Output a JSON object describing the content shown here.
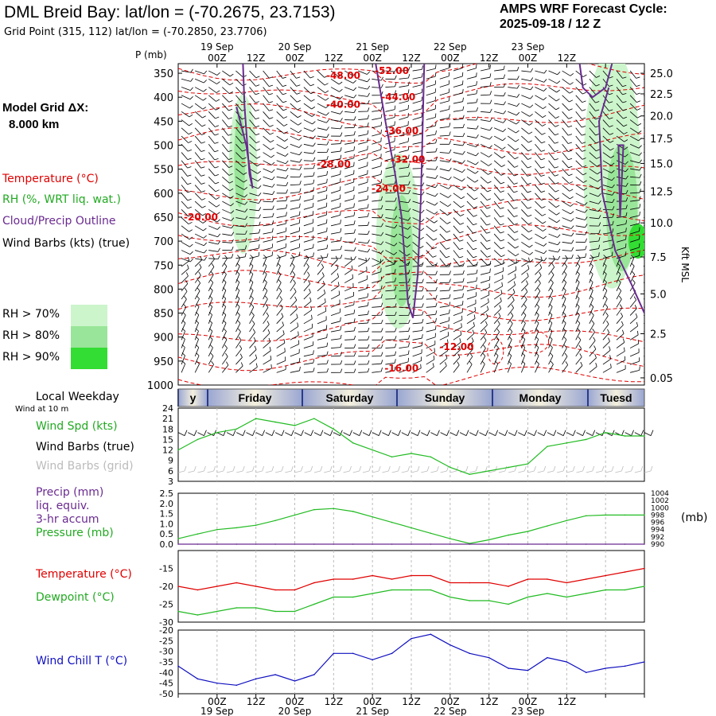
{
  "header": {
    "title": "DML Breid Bay:  lat/lon = (-70.2675, 23.7153)",
    "subtitle": "Grid Point (315, 112) lat/lon = (-70.2850, 23.7706)",
    "cycle_line1": "AMPS WRF Forecast Cycle:",
    "cycle_line2": "2025-09-18 / 12  Z"
  },
  "left_labels": {
    "p_mb": "P (mb)",
    "model_grid": "Model Grid ΔX:",
    "grid_km": "8.000 km",
    "temperature": "Temperature (°C)",
    "rh": "RH (%, WRT liq. wat.)",
    "cloud": "Cloud/Precip Outline",
    "wind_barbs": "Wind Barbs (kts) (true)",
    "rh70": "RH > 70%",
    "rh80": "RH > 80%",
    "rh90": "RH > 90%",
    "local_weekday": "Local Weekday",
    "wind_at": "Wind at 10 m",
    "wind_spd": "Wind Spd (kts)",
    "wind_barbs_true": "Wind Barbs (true)",
    "wind_barbs_grid": "Wind Barbs (grid)",
    "precip1": "Precip (mm)",
    "precip2": "liq. equiv.",
    "precip3": "3-hr accum",
    "pressure": "Pressure (mb)",
    "pressure_unit": "(mb)",
    "temperature2": "Temperature (°C)",
    "dewpoint": "Dewpoint (°C)",
    "windchill": "Wind Chill T (°C)",
    "kft": "Kft MSL"
  },
  "colors": {
    "temp": "#e00000",
    "rh_green": "#22bb22",
    "cloud": "#6a2a90",
    "rh70": "#ccf5cc",
    "rh80": "#99e599",
    "rh90": "#33dd33",
    "chill": "#1010c0",
    "band_dark": "#2a3a8a",
    "band_light": "#ece8d8"
  },
  "chart_data": [
    {
      "type": "heatmap",
      "title": "Time-height cross section",
      "xticks": [
        "00Z",
        "12Z",
        "00Z",
        "12Z",
        "00Z",
        "12Z",
        "00Z",
        "12Z",
        "00Z",
        "12Z"
      ],
      "top_dates": [
        "19 Sep",
        "20 Sep",
        "21 Sep",
        "22 Sep",
        "23 Sep"
      ],
      "pressure_ticks": [
        "350",
        "400",
        "450",
        "500",
        "550",
        "600",
        "650",
        "700",
        "750",
        "800",
        "850",
        "900",
        "950",
        "1000"
      ],
      "height_ticks": [
        "25.0",
        "22.5",
        "20.0",
        "17.5",
        "15.0",
        "12.5",
        "10.0",
        "7.5",
        "5.0",
        "2.5",
        "0.05"
      ],
      "temp_labels": [
        {
          "text": "-48.00",
          "hour": 51,
          "p": 355
        },
        {
          "text": "-52.00",
          "hour": 66,
          "p": 345
        },
        {
          "text": "-44.00",
          "hour": 68,
          "p": 400
        },
        {
          "text": "-40.00",
          "hour": 51,
          "p": 415
        },
        {
          "text": "-36.00",
          "hour": 69,
          "p": 470
        },
        {
          "text": "-32.00",
          "hour": 71,
          "p": 530
        },
        {
          "text": "-28.00",
          "hour": 48,
          "p": 540
        },
        {
          "text": "-24.00",
          "hour": 65,
          "p": 590
        },
        {
          "text": "-20.00",
          "hour": 7,
          "p": 650
        },
        {
          "text": "-12.00",
          "hour": 86,
          "p": 920
        },
        {
          "text": "-16.00",
          "hour": 69,
          "p": 965
        }
      ]
    },
    {
      "type": "line",
      "title": "Wind Spd (kts)",
      "x_hours": [
        0,
        6,
        12,
        18,
        24,
        30,
        36,
        42,
        48,
        54,
        60,
        66,
        72,
        78,
        84,
        90,
        96,
        102,
        108,
        114,
        120,
        126,
        132,
        138,
        144
      ],
      "series": [
        {
          "name": "Wind Spd (kts)",
          "values": [
            12,
            15,
            17,
            18,
            21,
            20,
            19,
            21,
            18,
            14,
            12,
            10,
            11,
            10,
            7,
            5,
            6,
            7,
            8,
            13,
            14,
            15,
            17,
            16,
            16
          ]
        }
      ],
      "ylim": [
        3,
        24
      ],
      "yticks": [
        "3",
        "6",
        "9",
        "12",
        "15",
        "18",
        "21",
        "24"
      ]
    },
    {
      "type": "line",
      "title": "Precip / Pressure",
      "x_hours": [
        0,
        6,
        12,
        18,
        24,
        30,
        36,
        42,
        48,
        54,
        60,
        66,
        72,
        78,
        84,
        90,
        96,
        102,
        108,
        114,
        120,
        126,
        132,
        138,
        144
      ],
      "series": [
        {
          "name": "Pressure (mb)",
          "values": [
            991.5,
            992.8,
            994.0,
            994.5,
            995.2,
            996.5,
            998.0,
            999.5,
            999.8,
            999.0,
            997.5,
            996.0,
            994.5,
            993.0,
            991.5,
            990.2,
            991.2,
            992.5,
            993.5,
            995.0,
            996.5,
            997.8,
            998.0,
            998.0,
            998.0
          ]
        },
        {
          "name": "Precip (mm)",
          "values": [
            0,
            0,
            0,
            0,
            0,
            0,
            0,
            0,
            0,
            0,
            0,
            0,
            0,
            0,
            0,
            0,
            0,
            0,
            0,
            0,
            0,
            0,
            0,
            0,
            0
          ]
        }
      ],
      "yticks_left": [
        "0.0",
        "0.5",
        "1.0",
        "1.5",
        "2.0",
        "2.5"
      ],
      "yticks_right": [
        "990",
        "992",
        "994",
        "996",
        "998",
        "1000",
        "1002",
        "1004"
      ]
    },
    {
      "type": "line",
      "title": "Temperature / Dewpoint",
      "x_hours": [
        0,
        6,
        12,
        18,
        24,
        30,
        36,
        42,
        48,
        54,
        60,
        66,
        72,
        78,
        84,
        90,
        96,
        102,
        108,
        114,
        120,
        126,
        132,
        138,
        144
      ],
      "series": [
        {
          "name": "Temperature (°C)",
          "values": [
            -20,
            -21,
            -20,
            -19,
            -20,
            -21,
            -21,
            -19,
            -18,
            -18,
            -17,
            -18,
            -17,
            -17,
            -19,
            -19,
            -19,
            -20,
            -18,
            -18,
            -19,
            -18,
            -17,
            -16,
            -15
          ]
        },
        {
          "name": "Dewpoint (°C)",
          "values": [
            -27,
            -28,
            -27,
            -26,
            -26,
            -27,
            -27,
            -25,
            -23,
            -23,
            -22,
            -21,
            -21,
            -21,
            -23,
            -24,
            -24,
            -25,
            -23,
            -22,
            -23,
            -22,
            -21,
            -21,
            -20
          ]
        }
      ],
      "ylim": [
        -30,
        -10
      ],
      "yticks": [
        "-30",
        "-25",
        "-20",
        "-15"
      ]
    },
    {
      "type": "line",
      "title": "Wind Chill T (°C)",
      "x_hours": [
        0,
        6,
        12,
        18,
        24,
        30,
        36,
        42,
        48,
        54,
        60,
        66,
        72,
        78,
        84,
        90,
        96,
        102,
        108,
        114,
        120,
        126,
        132,
        138,
        144
      ],
      "series": [
        {
          "name": "Wind Chill T (°C)",
          "values": [
            -37,
            -43,
            -45,
            -46,
            -43,
            -41,
            -44,
            -41,
            -31,
            -31,
            -34,
            -31,
            -24,
            -22,
            -27,
            -31,
            -33,
            -38,
            -39,
            -33,
            -35,
            -40,
            -38,
            -37,
            -35
          ]
        }
      ],
      "ylim": [
        -50,
        -20
      ],
      "yticks": [
        "-50",
        "-45",
        "-40",
        "-35",
        "-30",
        "-25",
        "-20"
      ]
    }
  ],
  "day_band": [
    "y",
    "Friday",
    "Saturday",
    "Sunday",
    "Monday",
    "Tuesd"
  ],
  "bottom_axis": {
    "times": [
      "00Z",
      "12Z",
      "00Z",
      "12Z",
      "00Z",
      "12Z",
      "00Z",
      "12Z",
      "00Z",
      "12Z"
    ],
    "dates": [
      "19 Sep",
      "20 Sep",
      "21 Sep",
      "22 Sep",
      "23 Sep"
    ]
  }
}
